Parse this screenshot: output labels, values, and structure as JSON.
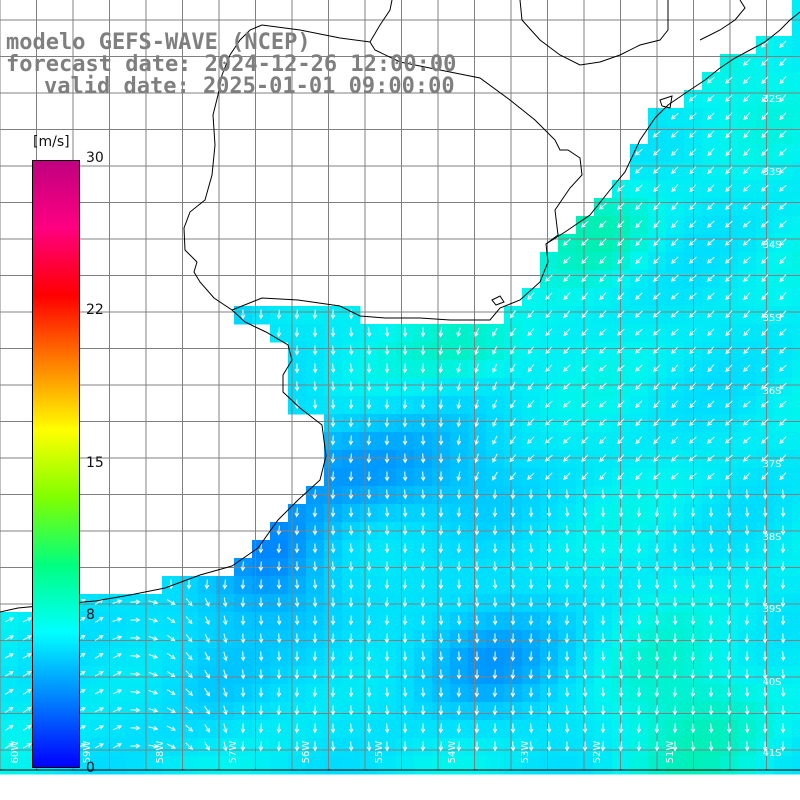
{
  "header": {
    "model": "modelo GEFS-WAVE (NCEP)",
    "forecast": "forecast date: 2024-12-26 12:00:00",
    "valid": "valid date: 2025-01-01 09:00:00"
  },
  "colorbar": {
    "unit": "[m/s]",
    "ticks": [
      "30",
      "22",
      "15",
      "8",
      "0"
    ],
    "range": [
      0,
      30
    ],
    "stops": [
      "#0000ff",
      "#0080ff",
      "#00ffff",
      "#00ff80",
      "#80ff00",
      "#ffff00",
      "#ff8000",
      "#ff0000",
      "#ff0080",
      "#c00080"
    ]
  },
  "lat_labels": [
    "32S",
    "33S",
    "34S",
    "35S",
    "36S",
    "37S",
    "38S",
    "39S",
    "40S",
    "41S"
  ],
  "lon_labels": [
    "60W",
    "59W",
    "58W",
    "57W",
    "56W",
    "55W",
    "54W",
    "53W",
    "52W",
    "51W"
  ],
  "colors": {
    "land": "#ffffff",
    "coast": "#000000",
    "grid": "#808080",
    "arrow": "#ffffff"
  }
}
